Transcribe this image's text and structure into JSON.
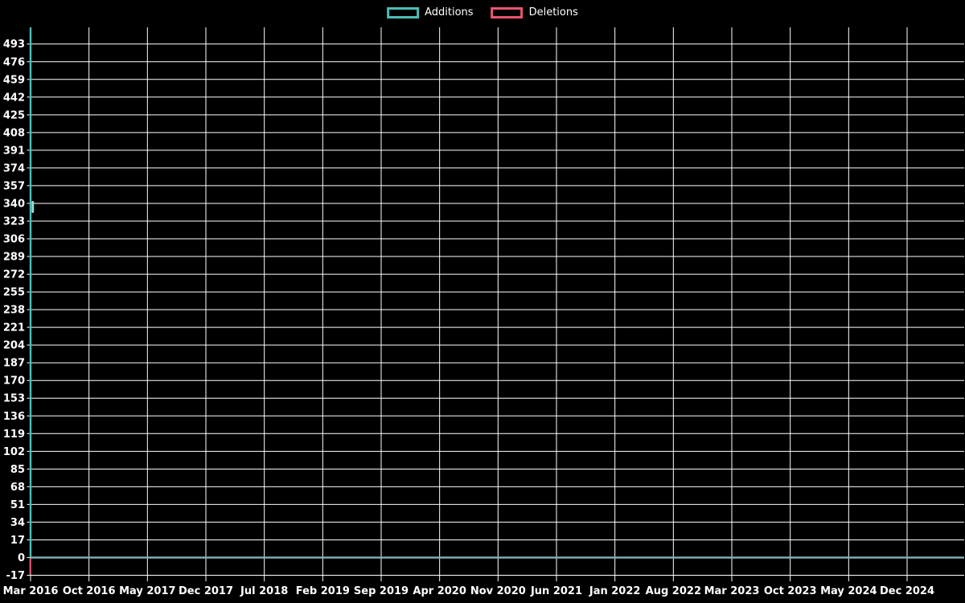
{
  "legend": {
    "items": [
      {
        "label": "Additions",
        "color": "#4dbdb7"
      },
      {
        "label": "Deletions",
        "color": "#eb5570"
      }
    ]
  },
  "chart_data": {
    "type": "line",
    "title": "",
    "xlabel": "",
    "ylabel": "",
    "background_color": "#000000",
    "grid": true,
    "grid_color": "#ffffff",
    "text_color": "#ffffff",
    "legend_position": "top-center",
    "x_tick_labels": [
      "Mar 2016",
      "Oct 2016",
      "May 2017",
      "Dec 2017",
      "Jul 2018",
      "Feb 2019",
      "Sep 2019",
      "Apr 2020",
      "Nov 2020",
      "Jun 2021",
      "Jan 2022",
      "Aug 2022",
      "Mar 2023",
      "Oct 2023",
      "May 2024",
      "Dec 2024"
    ],
    "x_tick_interval_months": 7,
    "x_range_note": "time axis runs from Mar 2016 to roughly mid-2025; plot extends about one extra label-gap past Dec 2024",
    "y_ticks": [
      -17,
      0,
      17,
      34,
      51,
      68,
      85,
      102,
      119,
      136,
      153,
      170,
      187,
      204,
      221,
      238,
      255,
      272,
      289,
      306,
      323,
      340,
      357,
      374,
      391,
      408,
      425,
      442,
      459,
      476,
      493
    ],
    "y_tick_step": 17,
    "y_min": -17,
    "y_max": 509,
    "zero_line_color": "#83b1b7",
    "series": [
      {
        "name": "Additions",
        "color": "#4dbdb7",
        "marker_color": "#96e0da",
        "points": [
          {
            "x": "Mar 2016",
            "y": 509,
            "note": "spike reaching top of plot, estimated"
          },
          {
            "x": "Mar 2016",
            "y": 337,
            "note": "visible point marker on the spike, estimated"
          }
        ],
        "all_other_values": 0,
        "summary": "single spike at Mar 2016, flat at 0 for every other date (flat teal line along y=0 across full width)"
      },
      {
        "name": "Deletions",
        "color": "#eb5570",
        "points": [
          {
            "x": "Mar 2016",
            "y": -17,
            "note": "short downward spike to axis minimum"
          }
        ],
        "all_other_values": 0,
        "summary": "single downward spike to -17 at Mar 2016, 0 everywhere else"
      }
    ]
  }
}
